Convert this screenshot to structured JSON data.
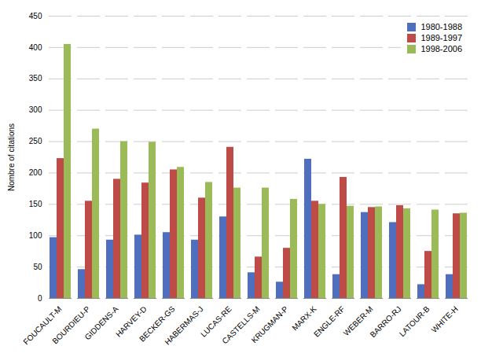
{
  "chart_data": {
    "type": "bar",
    "categories": [
      "FOUCAULT-M",
      "BOURDIEU-P",
      "GIDDENS-A",
      "HARVEY-D",
      "BECKER-GS",
      "HABERMAS-J",
      "LUCAS-RE",
      "CASTELLS-M",
      "KRUGMAN-P",
      "MARX-K",
      "ENGLE-RF",
      "WEBER-M",
      "BARRO-RJ",
      "LATOUR-B",
      "WHITE-H"
    ],
    "series": [
      {
        "name": "1980-1988",
        "color": "#4F6EBD",
        "values": [
          97,
          46,
          93,
          101,
          105,
          93,
          130,
          41,
          26,
          222,
          38,
          137,
          121,
          22,
          38
        ]
      },
      {
        "name": "1989-1997",
        "color": "#BE4B48",
        "values": [
          223,
          155,
          190,
          184,
          205,
          160,
          241,
          66,
          80,
          155,
          193,
          145,
          148,
          75,
          135
        ]
      },
      {
        "name": "1998-2006",
        "color": "#9BBB59",
        "values": [
          405,
          270,
          250,
          249,
          209,
          185,
          176,
          176,
          158,
          150,
          147,
          146,
          143,
          141,
          136
        ]
      }
    ],
    "ylabel": "Nombre of citations",
    "ylim": [
      0,
      450
    ],
    "yticks": [
      0,
      50,
      100,
      150,
      200,
      250,
      300,
      350,
      400,
      450
    ],
    "grid": true,
    "legend": "upper right"
  }
}
